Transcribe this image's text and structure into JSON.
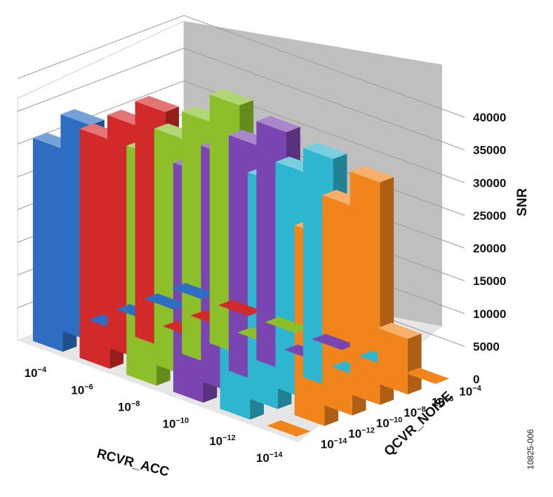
{
  "chart_data": {
    "type": "bar3d",
    "title": "",
    "zlabel": "SNR",
    "xlabel": "RCVR_ACC",
    "ylabel": "QCVR_NOISE",
    "zlim": [
      0,
      40000
    ],
    "z_ticks": [
      "0",
      "5000",
      "10000",
      "15000",
      "20000",
      "25000",
      "30000",
      "35000",
      "40000"
    ],
    "x_categories": [
      {
        "base": "10",
        "exp": "−4"
      },
      {
        "base": "10",
        "exp": "−6"
      },
      {
        "base": "10",
        "exp": "−8"
      },
      {
        "base": "10",
        "exp": "−10"
      },
      {
        "base": "10",
        "exp": "−12"
      },
      {
        "base": "10",
        "exp": "−14"
      }
    ],
    "y_categories": [
      {
        "base": "10",
        "exp": "−4"
      },
      {
        "base": "10",
        "exp": "−6"
      },
      {
        "base": "10",
        "exp": "−8"
      },
      {
        "base": "10",
        "exp": "−10"
      },
      {
        "base": "10",
        "exp": "−12"
      },
      {
        "base": "10",
        "exp": "−14"
      }
    ],
    "series_colors": [
      "#2e6ec2",
      "#d22a2a",
      "#8cbf2a",
      "#7a45b0",
      "#2eb5cf",
      "#f2841c"
    ],
    "values": [
      [
        0,
        0,
        0,
        0,
        33000,
        31000
      ],
      [
        0,
        0,
        0,
        36000,
        35500,
        35000
      ],
      [
        0,
        0,
        38000,
        37000,
        36000,
        35000
      ],
      [
        0,
        0,
        36500,
        36000,
        36000,
        35000
      ],
      [
        0,
        0,
        35000,
        34500,
        34500,
        34000
      ],
      [
        0,
        8500,
        34000,
        32000,
        29000,
        0
      ]
    ],
    "grid": true
  },
  "figure_code": "10825-006"
}
